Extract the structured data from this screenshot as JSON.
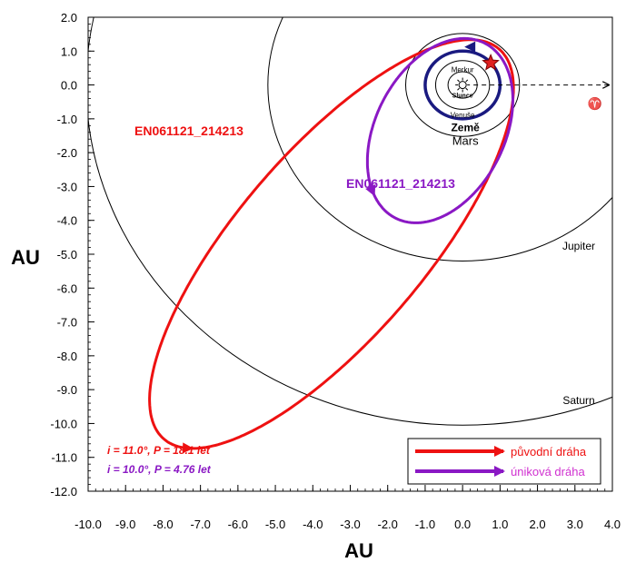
{
  "chart_data": {
    "type": "orbit-plot",
    "xlabel": "AU",
    "ylabel": "AU",
    "xlim": [
      -10.0,
      4.0
    ],
    "ylim": [
      -12.0,
      2.0
    ],
    "xticks": [
      "-10.0",
      "-9.0",
      "-8.0",
      "-7.0",
      "-6.0",
      "-5.0",
      "-4.0",
      "-3.0",
      "-2.0",
      "-1.0",
      "0.0",
      "1.0",
      "2.0",
      "3.0",
      "4.0"
    ],
    "yticks": [
      "2.0",
      "1.0",
      "0.0",
      "-1.0",
      "-2.0",
      "-3.0",
      "-4.0",
      "-5.0",
      "-6.0",
      "-7.0",
      "-8.0",
      "-9.0",
      "-10.0",
      "-11.0",
      "-12.0"
    ],
    "sun": {
      "label": "Slunce",
      "x": 0,
      "y": 0
    },
    "planets": [
      {
        "name": "Merkur",
        "radius": 0.39,
        "color": "#000000",
        "bold": false
      },
      {
        "name": "Venuše",
        "radius": 0.72,
        "color": "#000000",
        "bold": false
      },
      {
        "name": "Země",
        "radius": 1.0,
        "color": "#1a1a80",
        "bold": true
      },
      {
        "name": "Mars",
        "radius": 1.52,
        "color": "#000000",
        "bold": false
      },
      {
        "name": "Jupiter",
        "radius": 5.2,
        "color": "#000000",
        "bold": false
      },
      {
        "name": "Saturn",
        "radius": 10.05,
        "color": "#000000",
        "bold": false
      }
    ],
    "vernal_equinox_symbol": "♈",
    "event_point": {
      "x": 0.75,
      "y": 0.65
    },
    "series": [
      {
        "name": "EN061121_214213",
        "legend": "původní dráha",
        "color": "#ee1111",
        "info": "i = 11.0°, P = 18.1 let",
        "center": [
          -3.5,
          -4.7
        ],
        "a": 7.3,
        "b": 2.6,
        "angle_deg": 53
      },
      {
        "name": "EN061121_214213",
        "legend": "úniková dráha",
        "color": "#8a18c4",
        "info": "i = 10.0°, P = 4.76 let",
        "center": [
          -0.6,
          -1.35
        ],
        "a": 2.85,
        "b": 1.75,
        "angle_deg": 68
      }
    ]
  }
}
